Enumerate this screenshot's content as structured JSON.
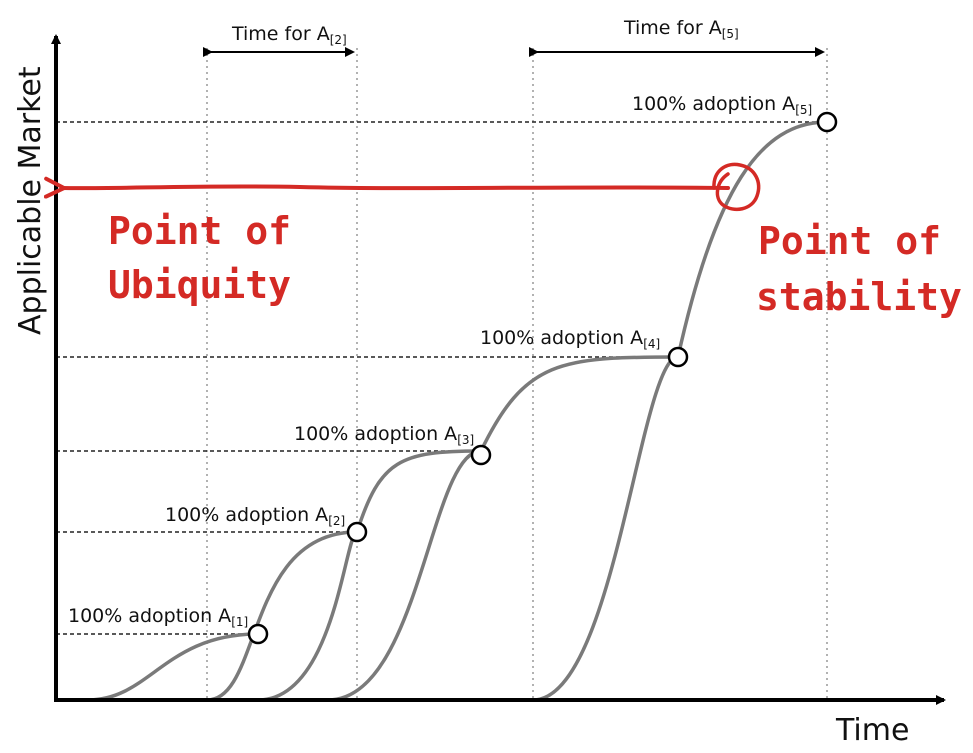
{
  "axes": {
    "y_title": "Applicable Market",
    "x_title": "Time"
  },
  "adoption_labels": [
    {
      "text": "100% adoption A",
      "sub": "[1]"
    },
    {
      "text": "100% adoption A",
      "sub": "[2]"
    },
    {
      "text": "100% adoption A",
      "sub": "[3]"
    },
    {
      "text": "100% adoption A",
      "sub": "[4]"
    },
    {
      "text": "100% adoption A",
      "sub": "[5]"
    }
  ],
  "time_spans": [
    {
      "text": "Time for A",
      "sub": "[2]"
    },
    {
      "text": "Time for A",
      "sub": "[5]"
    }
  ],
  "annotations": {
    "ubiquity_line1": "Point of",
    "ubiquity_line2": "Ubiquity",
    "stability_line1": "Point of",
    "stability_line2": "stability"
  },
  "colors": {
    "curve": "#7a7a7a",
    "annotation": "#d42a25",
    "axis": "#000000"
  }
}
